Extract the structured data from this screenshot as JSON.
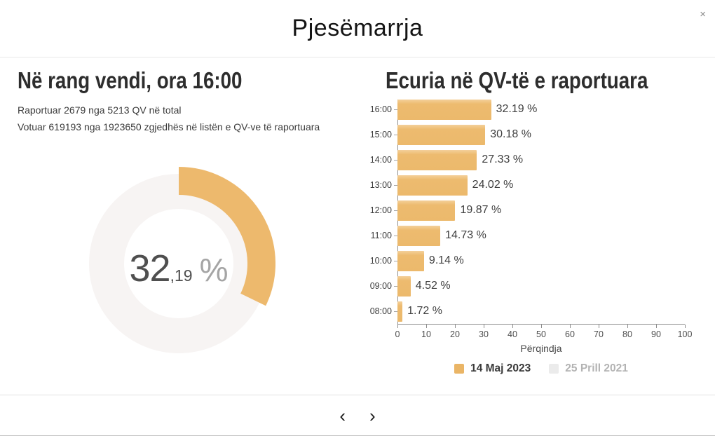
{
  "header": {
    "title": "Pjesëmarrja",
    "close_icon": "×"
  },
  "left": {
    "title": "Në rang vendi, ora 16:00",
    "reported_line": "Raportuar 2679 nga 5213 QV në total",
    "voted_line": "Votuar 619193 nga 1923650 zgjedhës në listën e QV-ve të raportuara",
    "donut": {
      "percent": 32.19,
      "value_main": "32",
      "value_decimal": ",19",
      "unit": "%",
      "arc_color": "#edb96d",
      "track_color": "#f7f4f3"
    }
  },
  "right": {
    "title": "Ecuria në QV-të e raportuara"
  },
  "chart_data": {
    "type": "bar",
    "orientation": "horizontal",
    "title": "Ecuria në QV-të e raportuara",
    "categories": [
      "16:00",
      "15:00",
      "14:00",
      "13:00",
      "12:00",
      "11:00",
      "10:00",
      "09:00",
      "08:00"
    ],
    "series": [
      {
        "name": "14 Maj 2023",
        "color": "#ecb96c",
        "values": [
          32.19,
          30.18,
          27.33,
          24.02,
          19.87,
          14.73,
          9.14,
          4.52,
          1.72
        ],
        "visible": true
      },
      {
        "name": "25 Prill 2021",
        "color": "#ececec",
        "values": [],
        "visible": false
      }
    ],
    "value_labels": [
      "32.19 %",
      "30.18 %",
      "27.33 %",
      "24.02 %",
      "19.87 %",
      "14.73 %",
      "9.14 %",
      "4.52 %",
      "1.72 %"
    ],
    "xlabel": "Përqindja",
    "xlim": [
      0,
      100
    ],
    "x_ticks": [
      0,
      10,
      20,
      30,
      40,
      50,
      60,
      70,
      80,
      90,
      100
    ],
    "grid": false,
    "legend_position": "bottom",
    "legend": [
      {
        "label": "14 Maj 2023",
        "swatch_color": "#eab566",
        "active": true
      },
      {
        "label": "25 Prill 2021",
        "swatch_color": "#ebebeb",
        "active": false
      }
    ]
  },
  "footer": {
    "prev_icon": "‹",
    "next_icon": "›"
  }
}
